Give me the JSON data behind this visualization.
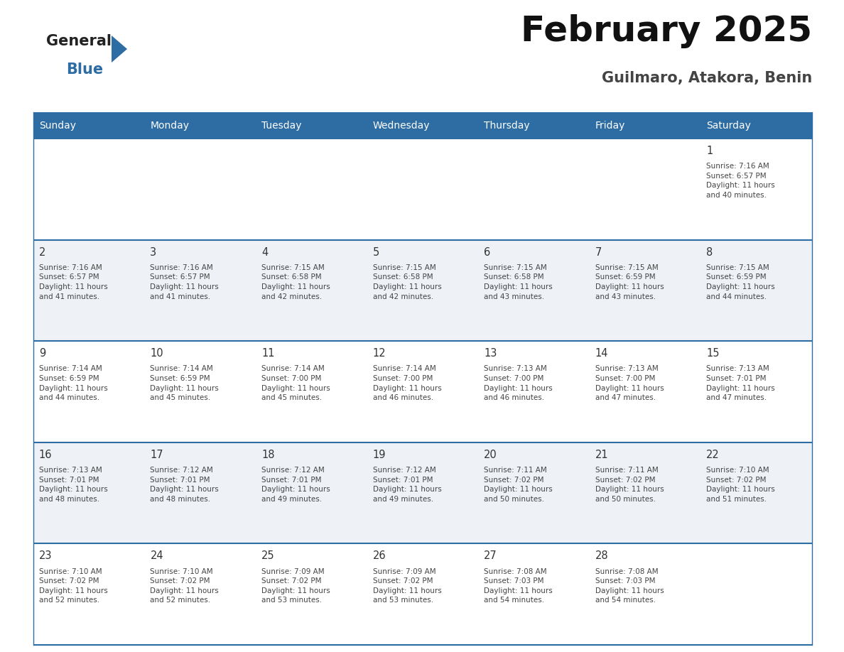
{
  "title": "February 2025",
  "subtitle": "Guilmaro, Atakora, Benin",
  "days_of_week": [
    "Sunday",
    "Monday",
    "Tuesday",
    "Wednesday",
    "Thursday",
    "Friday",
    "Saturday"
  ],
  "header_bg": "#2E6DA4",
  "header_text": "#FFFFFF",
  "row_bg_odd": "#FFFFFF",
  "row_bg_even": "#EEF2F7",
  "cell_border": "#2E6DA4",
  "day_num_color": "#333333",
  "info_text_color": "#444444",
  "title_color": "#111111",
  "subtitle_color": "#444444",
  "logo_general_color": "#222222",
  "logo_blue_color": "#2E6DA4",
  "logo_triangle_color": "#2E6DA4",
  "calendar": [
    [
      {
        "day": null,
        "info": null
      },
      {
        "day": null,
        "info": null
      },
      {
        "day": null,
        "info": null
      },
      {
        "day": null,
        "info": null
      },
      {
        "day": null,
        "info": null
      },
      {
        "day": null,
        "info": null
      },
      {
        "day": 1,
        "info": "Sunrise: 7:16 AM\nSunset: 6:57 PM\nDaylight: 11 hours\nand 40 minutes."
      }
    ],
    [
      {
        "day": 2,
        "info": "Sunrise: 7:16 AM\nSunset: 6:57 PM\nDaylight: 11 hours\nand 41 minutes."
      },
      {
        "day": 3,
        "info": "Sunrise: 7:16 AM\nSunset: 6:57 PM\nDaylight: 11 hours\nand 41 minutes."
      },
      {
        "day": 4,
        "info": "Sunrise: 7:15 AM\nSunset: 6:58 PM\nDaylight: 11 hours\nand 42 minutes."
      },
      {
        "day": 5,
        "info": "Sunrise: 7:15 AM\nSunset: 6:58 PM\nDaylight: 11 hours\nand 42 minutes."
      },
      {
        "day": 6,
        "info": "Sunrise: 7:15 AM\nSunset: 6:58 PM\nDaylight: 11 hours\nand 43 minutes."
      },
      {
        "day": 7,
        "info": "Sunrise: 7:15 AM\nSunset: 6:59 PM\nDaylight: 11 hours\nand 43 minutes."
      },
      {
        "day": 8,
        "info": "Sunrise: 7:15 AM\nSunset: 6:59 PM\nDaylight: 11 hours\nand 44 minutes."
      }
    ],
    [
      {
        "day": 9,
        "info": "Sunrise: 7:14 AM\nSunset: 6:59 PM\nDaylight: 11 hours\nand 44 minutes."
      },
      {
        "day": 10,
        "info": "Sunrise: 7:14 AM\nSunset: 6:59 PM\nDaylight: 11 hours\nand 45 minutes."
      },
      {
        "day": 11,
        "info": "Sunrise: 7:14 AM\nSunset: 7:00 PM\nDaylight: 11 hours\nand 45 minutes."
      },
      {
        "day": 12,
        "info": "Sunrise: 7:14 AM\nSunset: 7:00 PM\nDaylight: 11 hours\nand 46 minutes."
      },
      {
        "day": 13,
        "info": "Sunrise: 7:13 AM\nSunset: 7:00 PM\nDaylight: 11 hours\nand 46 minutes."
      },
      {
        "day": 14,
        "info": "Sunrise: 7:13 AM\nSunset: 7:00 PM\nDaylight: 11 hours\nand 47 minutes."
      },
      {
        "day": 15,
        "info": "Sunrise: 7:13 AM\nSunset: 7:01 PM\nDaylight: 11 hours\nand 47 minutes."
      }
    ],
    [
      {
        "day": 16,
        "info": "Sunrise: 7:13 AM\nSunset: 7:01 PM\nDaylight: 11 hours\nand 48 minutes."
      },
      {
        "day": 17,
        "info": "Sunrise: 7:12 AM\nSunset: 7:01 PM\nDaylight: 11 hours\nand 48 minutes."
      },
      {
        "day": 18,
        "info": "Sunrise: 7:12 AM\nSunset: 7:01 PM\nDaylight: 11 hours\nand 49 minutes."
      },
      {
        "day": 19,
        "info": "Sunrise: 7:12 AM\nSunset: 7:01 PM\nDaylight: 11 hours\nand 49 minutes."
      },
      {
        "day": 20,
        "info": "Sunrise: 7:11 AM\nSunset: 7:02 PM\nDaylight: 11 hours\nand 50 minutes."
      },
      {
        "day": 21,
        "info": "Sunrise: 7:11 AM\nSunset: 7:02 PM\nDaylight: 11 hours\nand 50 minutes."
      },
      {
        "day": 22,
        "info": "Sunrise: 7:10 AM\nSunset: 7:02 PM\nDaylight: 11 hours\nand 51 minutes."
      }
    ],
    [
      {
        "day": 23,
        "info": "Sunrise: 7:10 AM\nSunset: 7:02 PM\nDaylight: 11 hours\nand 52 minutes."
      },
      {
        "day": 24,
        "info": "Sunrise: 7:10 AM\nSunset: 7:02 PM\nDaylight: 11 hours\nand 52 minutes."
      },
      {
        "day": 25,
        "info": "Sunrise: 7:09 AM\nSunset: 7:02 PM\nDaylight: 11 hours\nand 53 minutes."
      },
      {
        "day": 26,
        "info": "Sunrise: 7:09 AM\nSunset: 7:02 PM\nDaylight: 11 hours\nand 53 minutes."
      },
      {
        "day": 27,
        "info": "Sunrise: 7:08 AM\nSunset: 7:03 PM\nDaylight: 11 hours\nand 54 minutes."
      },
      {
        "day": 28,
        "info": "Sunrise: 7:08 AM\nSunset: 7:03 PM\nDaylight: 11 hours\nand 54 minutes."
      },
      {
        "day": null,
        "info": null
      }
    ]
  ]
}
